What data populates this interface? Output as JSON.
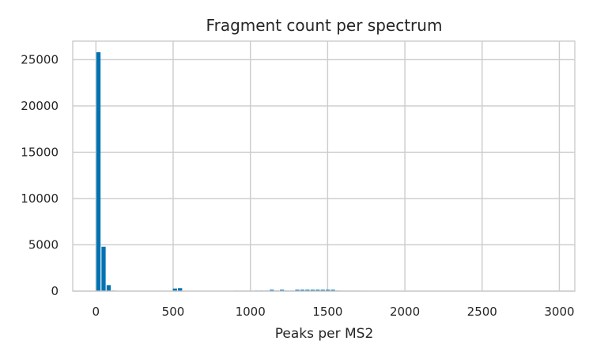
{
  "chart_data": {
    "type": "bar",
    "title": "Fragment count per spectrum",
    "xlabel": "Peaks per MS2",
    "ylabel": "",
    "xlim": [
      -150,
      3100
    ],
    "ylim": [
      0,
      27000
    ],
    "xticks": [
      0,
      500,
      1000,
      1500,
      2000,
      2500,
      3000
    ],
    "yticks": [
      0,
      5000,
      10000,
      15000,
      20000,
      25000
    ],
    "grid": true,
    "bar_color": "#0072b2",
    "bin_width": 33,
    "bins": [
      {
        "x0": 0,
        "count": 25800
      },
      {
        "x0": 33,
        "count": 4800
      },
      {
        "x0": 66,
        "count": 650
      },
      {
        "x0": 99,
        "count": 60
      },
      {
        "x0": 495,
        "count": 280
      },
      {
        "x0": 528,
        "count": 320
      },
      {
        "x0": 891,
        "count": 50
      },
      {
        "x0": 924,
        "count": 50
      },
      {
        "x0": 957,
        "count": 50
      },
      {
        "x0": 990,
        "count": 50
      },
      {
        "x0": 1023,
        "count": 60
      },
      {
        "x0": 1056,
        "count": 60
      },
      {
        "x0": 1089,
        "count": 60
      },
      {
        "x0": 1122,
        "count": 150
      },
      {
        "x0": 1155,
        "count": 60
      },
      {
        "x0": 1188,
        "count": 150
      },
      {
        "x0": 1221,
        "count": 60
      },
      {
        "x0": 1254,
        "count": 60
      },
      {
        "x0": 1287,
        "count": 150
      },
      {
        "x0": 1320,
        "count": 150
      },
      {
        "x0": 1353,
        "count": 150
      },
      {
        "x0": 1386,
        "count": 150
      },
      {
        "x0": 1419,
        "count": 150
      },
      {
        "x0": 1452,
        "count": 150
      },
      {
        "x0": 1485,
        "count": 150
      },
      {
        "x0": 1518,
        "count": 150
      },
      {
        "x0": 1551,
        "count": 60
      },
      {
        "x0": 1584,
        "count": 50
      },
      {
        "x0": 1617,
        "count": 50
      },
      {
        "x0": 1650,
        "count": 50
      },
      {
        "x0": 1683,
        "count": 50
      },
      {
        "x0": 1716,
        "count": 40
      }
    ]
  }
}
